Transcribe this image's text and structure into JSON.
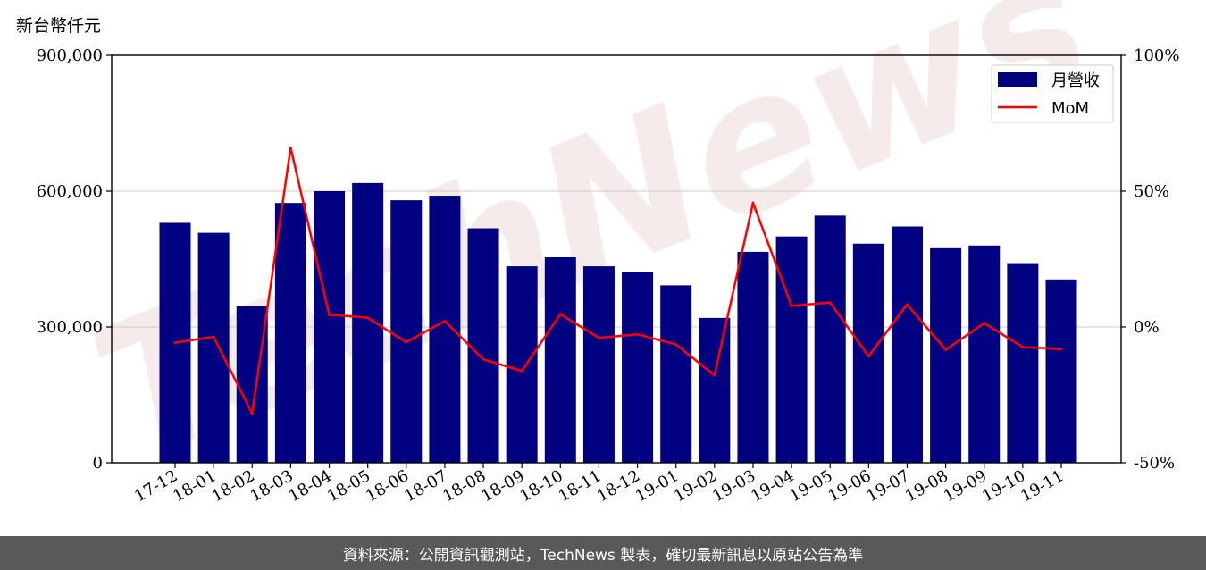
{
  "y_unit_label": "新台幣仟元",
  "footer_text": "資料來源：公開資訊觀測站，TechNews 製表，確切最新訊息以原站公告為準",
  "watermark_text": "TechNews",
  "colors": {
    "bar": "#000080",
    "line": "#ff0000",
    "grid": "#cccccc",
    "footer_bg": "#595959"
  },
  "chart_data": {
    "type": "bar",
    "categories": [
      "17-12",
      "18-01",
      "18-02",
      "18-03",
      "18-04",
      "18-05",
      "18-06",
      "18-07",
      "18-08",
      "18-09",
      "18-10",
      "18-11",
      "18-12",
      "19-01",
      "19-02",
      "19-03",
      "19-04",
      "19-05",
      "19-06",
      "19-07",
      "19-08",
      "19-09",
      "19-10",
      "19-11"
    ],
    "series": [
      {
        "name": "月營收",
        "type": "bar",
        "axis": "left",
        "values": [
          530000,
          508000,
          346000,
          574000,
          600000,
          618000,
          580000,
          590000,
          518000,
          434000,
          454000,
          434000,
          422000,
          392000,
          320000,
          466000,
          500000,
          546000,
          484000,
          522000,
          474000,
          480000,
          441000,
          405000
        ]
      },
      {
        "name": "MoM",
        "type": "line",
        "axis": "right",
        "values": [
          -5.8,
          -3.6,
          -31.8,
          66,
          4.5,
          3.4,
          -5.6,
          2.2,
          -11.9,
          -16.2,
          4.7,
          -4,
          -2.7,
          -6.4,
          -17.8,
          45.7,
          7.8,
          9,
          -10.8,
          8.3,
          -8.4,
          1.4,
          -7.4,
          -8.1
        ]
      }
    ],
    "y_left": {
      "ylim": [
        0,
        900000
      ],
      "ticks": [
        "0",
        "300,000",
        "600,000",
        "900,000"
      ],
      "tick_values": [
        0,
        300000,
        600000,
        900000
      ]
    },
    "y_right": {
      "ylim": [
        -50,
        100
      ],
      "ticks": [
        "-50%",
        "0%",
        "50%",
        "100%"
      ],
      "tick_values": [
        -50,
        0,
        50,
        100
      ]
    },
    "grid": "horizontal",
    "legend_position": "top-right"
  }
}
